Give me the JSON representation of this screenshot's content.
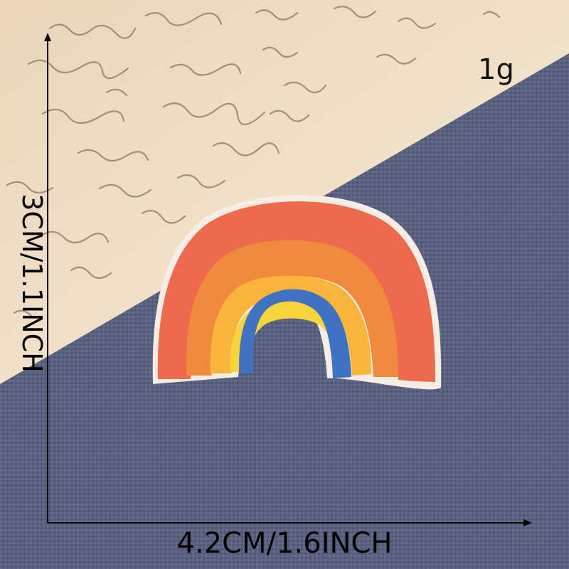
{
  "labels": {
    "weight": "1g",
    "height": "3CM/1.1INCH",
    "width": "4.2CM/1.6INCH"
  },
  "colors": {
    "paper": "#ecd9bf",
    "fabric": "#59627f",
    "stripe_outer": "#ee6a4c",
    "stripe_2": "#f28a3e",
    "stripe_3": "#f8b53a",
    "stripe_4": "#f6d53c",
    "stripe_inner": "#3f72c2",
    "patch_edge": "#f7ede4",
    "ink": "#8a7563",
    "arrow": "#000000"
  }
}
